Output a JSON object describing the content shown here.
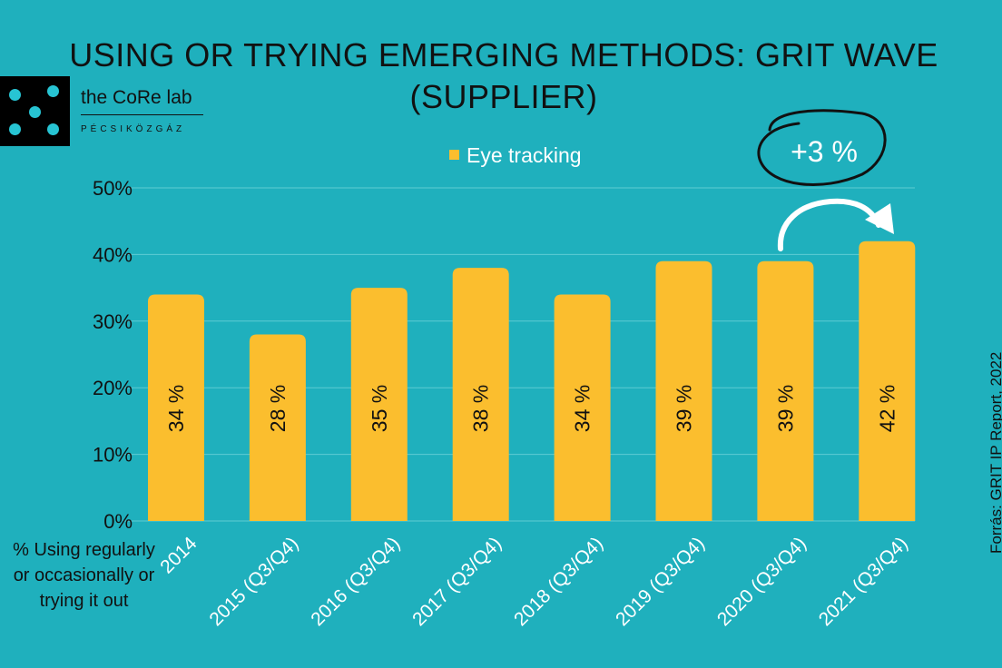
{
  "chart_data": {
    "type": "bar",
    "title": "USING OR TRYING EMERGING METHODS: GRIT WAVE (SUPPLIER)",
    "categories": [
      "2014",
      "2015 (Q3/Q4)",
      "2016 (Q3/Q4)",
      "2017 (Q3/Q4)",
      "2018 (Q3/Q4)",
      "2019 (Q3/Q4)",
      "2020 (Q3/Q4)",
      "2021 (Q3/Q4)"
    ],
    "series": [
      {
        "name": "Eye tracking",
        "values": [
          34,
          28,
          35,
          38,
          34,
          39,
          39,
          42
        ],
        "data_labels": [
          "34 %",
          "28 %",
          "35 %",
          "38 %",
          "34 %",
          "39 %",
          "39 %",
          "42 %"
        ]
      }
    ],
    "ylim": [
      0,
      50
    ],
    "yticks": [
      0,
      10,
      20,
      30,
      40,
      50
    ],
    "ytick_labels": [
      "0%",
      "10%",
      "20%",
      "30%",
      "40%",
      "50%"
    ],
    "ylabel": "% Using regularly or occasionally or trying it out",
    "grid": true,
    "legend_position": "top-center",
    "annotation": "+3 %"
  },
  "colors": {
    "background": "#1fb0bd",
    "bar": "#fbbe2e",
    "gridline": "#5fcbd4"
  },
  "logo": {
    "name": "the CoRe lab",
    "subtitle": "PÉCSIKÖZGÁZ"
  },
  "source": "Forrás: GRIT IP Report, 2022"
}
